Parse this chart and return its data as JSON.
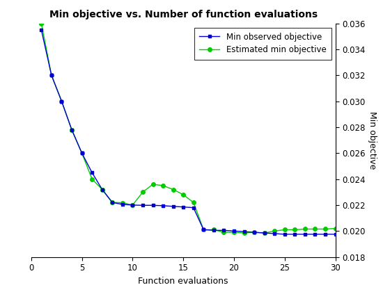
{
  "title": "Min objective vs. Number of function evaluations",
  "xlabel": "Function evaluations",
  "ylabel": "Min objective",
  "xlim": [
    0,
    30
  ],
  "ylim": [
    0.018,
    0.036
  ],
  "yticks": [
    0.018,
    0.02,
    0.022,
    0.024,
    0.026,
    0.028,
    0.03,
    0.032,
    0.034,
    0.036
  ],
  "xticks": [
    0,
    5,
    10,
    15,
    20,
    25,
    30
  ],
  "x": [
    1,
    2,
    3,
    4,
    5,
    6,
    7,
    8,
    9,
    10,
    11,
    12,
    13,
    14,
    15,
    16,
    17,
    18,
    19,
    20,
    21,
    22,
    23,
    24,
    25,
    26,
    27,
    28,
    29,
    30
  ],
  "blue_y": [
    0.0355,
    0.032,
    0.03,
    0.0278,
    0.026,
    0.0245,
    0.0232,
    0.0222,
    0.02205,
    0.022,
    0.02198,
    0.02198,
    0.02195,
    0.0219,
    0.02185,
    0.0218,
    0.0201,
    0.02005,
    0.02005,
    0.02,
    0.01995,
    0.0199,
    0.01985,
    0.0198,
    0.01975,
    0.01975,
    0.01975,
    0.01975,
    0.01975,
    0.01975
  ],
  "green_y": [
    0.036,
    0.032,
    0.03,
    0.0278,
    0.026,
    0.024,
    0.0232,
    0.0222,
    0.02218,
    0.022,
    0.023,
    0.0236,
    0.0235,
    0.0232,
    0.0228,
    0.0222,
    0.0201,
    0.0201,
    0.0199,
    0.0199,
    0.01985,
    0.0199,
    0.01985,
    0.02,
    0.0201,
    0.0201,
    0.02015,
    0.02015,
    0.02015,
    0.0202
  ],
  "blue_color": "#0000cd",
  "green_color": "#00cc00",
  "legend_labels": [
    "Min observed objective",
    "Estimated min objective"
  ],
  "background_color": "#ffffff",
  "figsize": [
    5.6,
    4.2
  ],
  "dpi": 100
}
